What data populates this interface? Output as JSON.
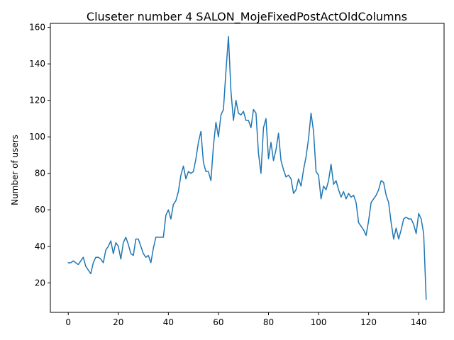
{
  "chart_data": {
    "type": "line",
    "title": "Cluseter number 4 SALON_MojeFixedPostActOldColumns",
    "xlabel": "",
    "ylabel": "Number of users",
    "xlim": [
      -7.15,
      150.15
    ],
    "ylim": [
      3.8,
      162.2
    ],
    "xticks": [
      0,
      20,
      40,
      60,
      80,
      100,
      120,
      140
    ],
    "yticks": [
      20,
      40,
      60,
      80,
      100,
      120,
      140,
      160
    ],
    "grid": false,
    "line_color": "#1f77b4",
    "series": [
      {
        "x": [
          0,
          1,
          2,
          3,
          4,
          5,
          6,
          7,
          8,
          9,
          10,
          11,
          12,
          13,
          14,
          15,
          16,
          17,
          18,
          19,
          20,
          21,
          22,
          23,
          24,
          25,
          26,
          27,
          28,
          29,
          30,
          31,
          32,
          33,
          34,
          35,
          36,
          37,
          38,
          39,
          40,
          41,
          42,
          43,
          44,
          45,
          46,
          47,
          48,
          49,
          50,
          51,
          52,
          53,
          54,
          55,
          56,
          57,
          58,
          59,
          60,
          61,
          62,
          63,
          64,
          65,
          66,
          67,
          68,
          69,
          70,
          71,
          72,
          73,
          74,
          75,
          76,
          77,
          78,
          79,
          80,
          81,
          82,
          83,
          84,
          85,
          86,
          87,
          88,
          89,
          90,
          91,
          92,
          93,
          94,
          95,
          96,
          97,
          98,
          99,
          100,
          101,
          102,
          103,
          104,
          105,
          106,
          107,
          108,
          109,
          110,
          111,
          112,
          113,
          114,
          115,
          116,
          117,
          118,
          119,
          120,
          121,
          122,
          123,
          124,
          125,
          126,
          127,
          128,
          129,
          130,
          131,
          132,
          133,
          134,
          135,
          136,
          137,
          138,
          139,
          140,
          141,
          142,
          143
        ],
        "values": [
          31,
          31,
          32,
          31,
          30,
          32,
          34,
          29,
          27,
          25,
          31,
          34,
          34,
          33,
          31,
          38,
          40,
          43,
          36,
          42,
          40,
          33,
          42,
          45,
          41,
          36,
          35,
          44,
          44,
          40,
          36,
          34,
          35,
          31,
          39,
          45,
          45,
          45,
          45,
          57,
          60,
          55,
          63,
          65,
          70,
          79,
          84,
          77,
          81,
          80,
          81,
          88,
          97,
          103,
          86,
          81,
          81,
          76,
          95,
          108,
          100,
          112,
          115,
          136,
          155,
          125,
          109,
          120,
          113,
          112,
          114,
          109,
          109,
          105,
          115,
          113,
          91,
          80,
          105,
          110,
          88,
          97,
          87,
          93,
          102,
          87,
          82,
          78,
          79,
          77,
          69,
          71,
          77,
          73,
          82,
          89,
          99,
          113,
          103,
          81,
          79,
          66,
          73,
          71,
          76,
          85,
          74,
          76,
          71,
          67,
          70,
          66,
          69,
          67,
          68,
          64,
          53,
          51,
          49,
          46,
          54,
          64,
          66,
          68,
          71,
          76,
          75,
          68,
          64,
          53,
          44,
          50,
          44,
          49,
          55,
          56,
          55,
          55,
          52,
          47,
          58,
          55,
          47,
          11
        ]
      }
    ]
  }
}
